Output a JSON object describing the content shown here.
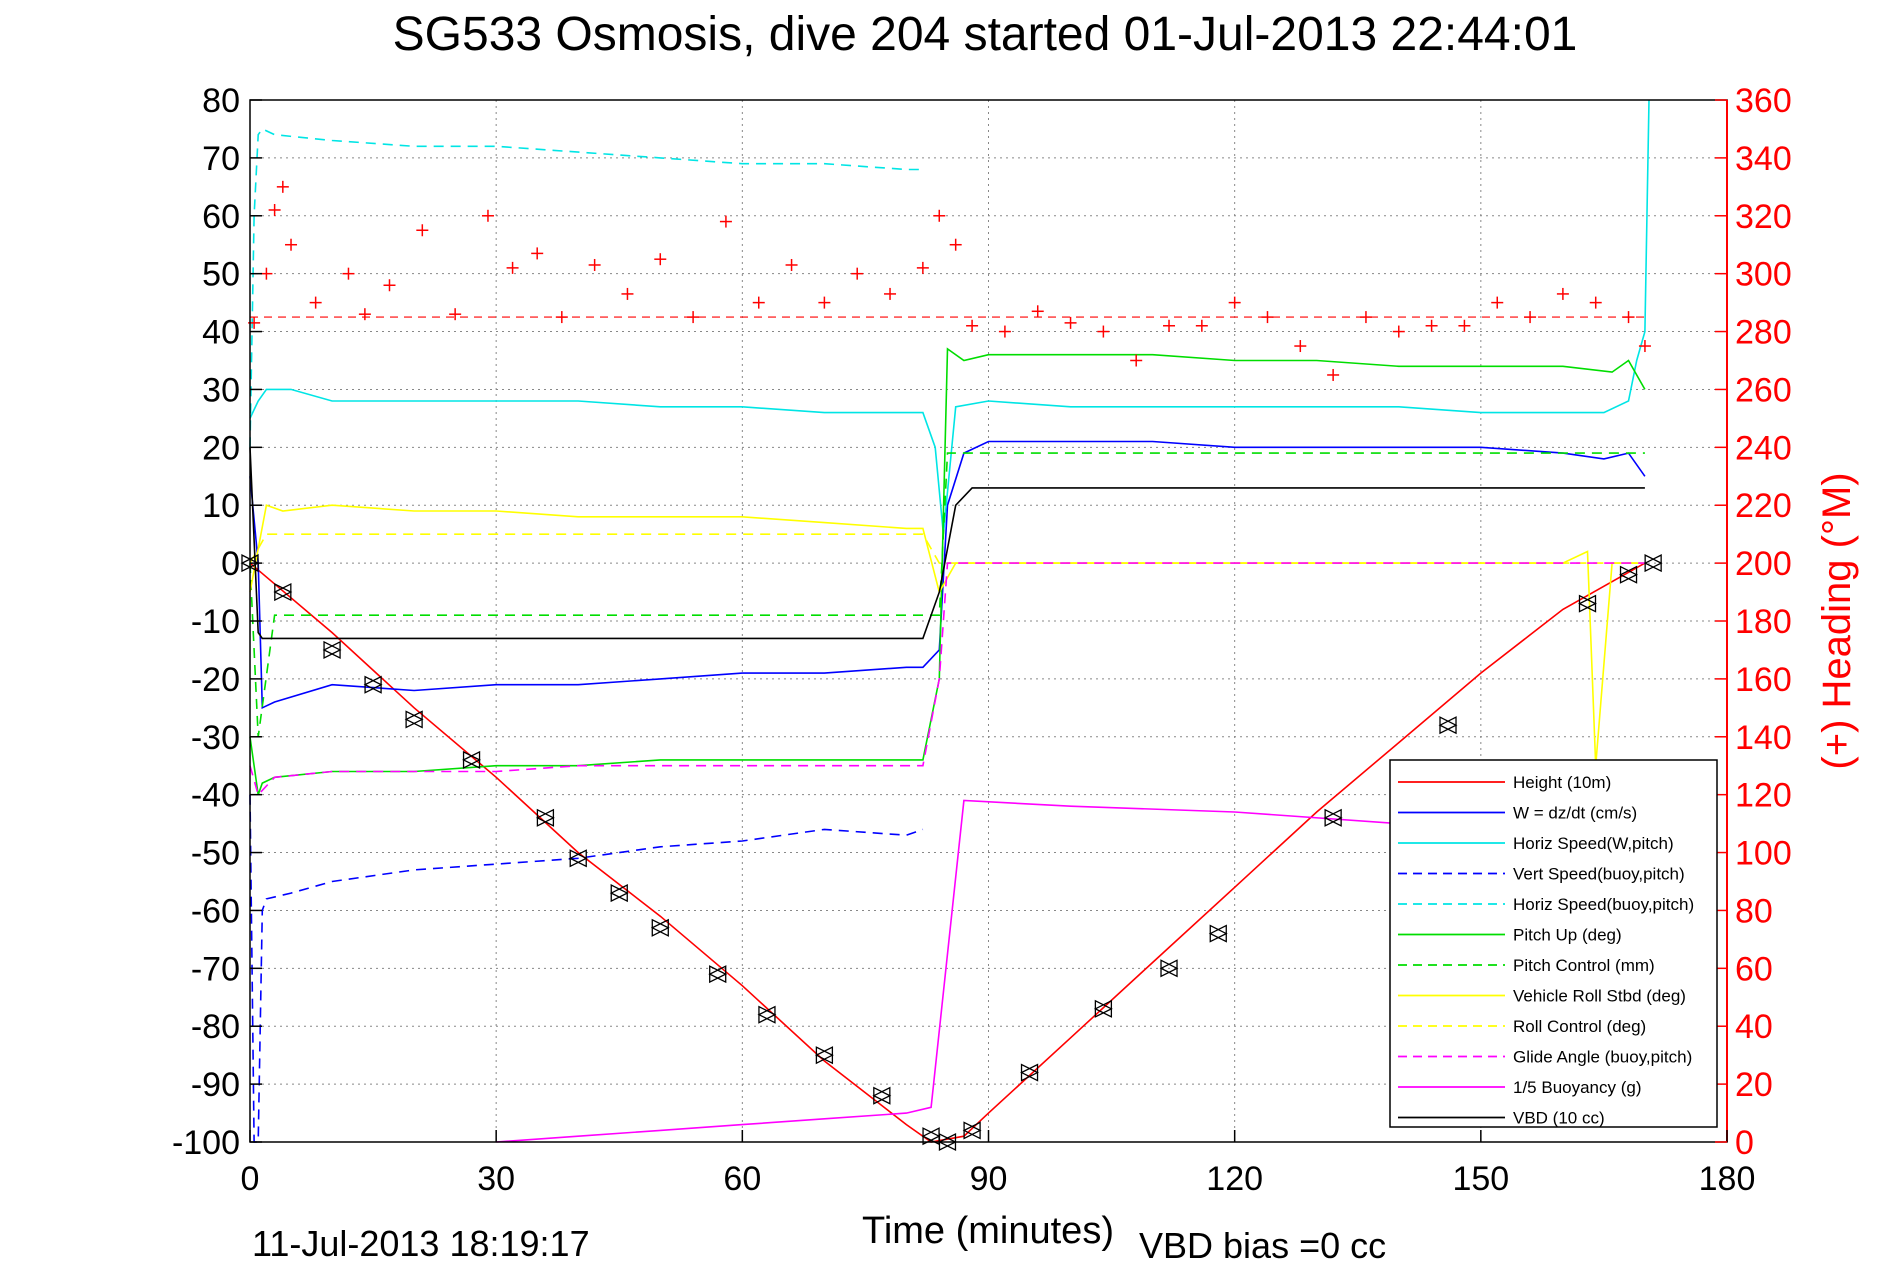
{
  "chart_data": {
    "type": "line",
    "title": "SG533 Osmosis, dive 204 started 01-Jul-2013 22:44:01",
    "xlabel": "Time (minutes)",
    "ylabel": "",
    "ylabel_right": "(+) Heading (°M)",
    "footer_left": "11-Jul-2013 18:19:17",
    "footer_right": "VBD bias =0 cc",
    "xlim": [
      0,
      180
    ],
    "ylim": [
      -100,
      80
    ],
    "ylim_right": [
      0,
      360
    ],
    "xticks": [
      "0",
      "30",
      "60",
      "90",
      "120",
      "150",
      "180"
    ],
    "yticks": [
      "80",
      "70",
      "60",
      "50",
      "40",
      "30",
      "20",
      "10",
      "0",
      "-10",
      "-20",
      "-30",
      "-40",
      "-50",
      "-60",
      "-70",
      "-80",
      "-90",
      "-100"
    ],
    "yticks_right": [
      "360",
      "340",
      "320",
      "300",
      "280",
      "260",
      "240",
      "220",
      "200",
      "180",
      "160",
      "140",
      "120",
      "100",
      "80",
      "60",
      "40",
      "20",
      "0"
    ],
    "grid": true,
    "legend_position": "lower-right",
    "colors": {
      "right_axis": "#ff0000",
      "heading": "#ff0000"
    },
    "series": [
      {
        "name": "Height (10m)",
        "color": "#ff0000",
        "dash": "solid",
        "x": [
          0,
          10,
          20,
          30,
          40,
          50,
          60,
          70,
          80,
          83,
          87,
          90,
          100,
          110,
          120,
          130,
          140,
          150,
          160,
          170
        ],
        "y": [
          0,
          -12,
          -25,
          -37,
          -50,
          -61,
          -73,
          -86,
          -97,
          -100,
          -99,
          -95,
          -82,
          -69,
          -56,
          -43,
          -31,
          -19,
          -8,
          0
        ]
      },
      {
        "name": "W = dz/dt (cm/s)",
        "color": "#0000ff",
        "dash": "solid",
        "x": [
          0,
          1,
          1.5,
          3,
          10,
          20,
          30,
          40,
          50,
          60,
          70,
          80,
          82,
          84,
          85,
          87,
          90,
          100,
          110,
          120,
          130,
          140,
          150,
          160,
          165,
          168,
          170
        ],
        "y": [
          15,
          0,
          -25,
          -24,
          -21,
          -22,
          -21,
          -21,
          -20,
          -19,
          -19,
          -18,
          -18,
          -15,
          10,
          19,
          21,
          21,
          21,
          20,
          20,
          20,
          20,
          19,
          18,
          19,
          15
        ]
      },
      {
        "name": "Horiz Speed(W,pitch)",
        "color": "#00e5e5",
        "dash": "solid",
        "x": [
          0,
          1,
          2,
          5,
          10,
          20,
          30,
          40,
          50,
          60,
          70,
          80,
          82,
          83.5,
          84.5,
          86,
          90,
          100,
          110,
          120,
          130,
          140,
          150,
          160,
          165,
          168,
          169,
          170,
          170.5
        ],
        "y": [
          25,
          28,
          30,
          30,
          28,
          28,
          28,
          28,
          27,
          27,
          26,
          26,
          26,
          20,
          5,
          27,
          28,
          27,
          27,
          27,
          27,
          27,
          26,
          26,
          26,
          28,
          35,
          40,
          80
        ]
      },
      {
        "name": "Vert Speed(buoy,pitch)",
        "color": "#0000ff",
        "dash": "dashed",
        "x": [
          0,
          0.5,
          1,
          1.5,
          2,
          5,
          10,
          20,
          30,
          40,
          50,
          60,
          70,
          80,
          82
        ],
        "y": [
          -40,
          -100,
          -100,
          -60,
          -58,
          -57,
          -55,
          -53,
          -52,
          -51,
          -49,
          -48,
          -46,
          -47,
          -46
        ]
      },
      {
        "name": "Horiz Speed(buoy,pitch)",
        "color": "#00e5e5",
        "dash": "dashed",
        "x": [
          0,
          0.5,
          1,
          1.5,
          3,
          10,
          20,
          30,
          40,
          50,
          60,
          70,
          80,
          82
        ],
        "y": [
          20,
          60,
          74,
          75,
          74,
          73,
          72,
          72,
          71,
          70,
          69,
          69,
          68,
          68
        ]
      },
      {
        "name": "Pitch Up (deg)",
        "color": "#00dd00",
        "dash": "solid",
        "x": [
          0,
          1,
          1.5,
          3,
          10,
          20,
          30,
          40,
          50,
          60,
          70,
          80,
          82,
          84,
          85,
          87,
          90,
          100,
          110,
          120,
          130,
          140,
          150,
          160,
          166,
          168,
          170
        ],
        "y": [
          -30,
          -40,
          -38,
          -37,
          -36,
          -36,
          -35,
          -35,
          -34,
          -34,
          -34,
          -34,
          -34,
          -20,
          37,
          35,
          36,
          36,
          36,
          35,
          35,
          34,
          34,
          34,
          33,
          35,
          30
        ]
      },
      {
        "name": "Pitch Control (mm)",
        "color": "#00dd00",
        "dash": "dashed",
        "x": [
          0,
          1,
          3,
          10,
          20,
          30,
          40,
          50,
          60,
          70,
          80,
          82,
          84,
          85,
          170
        ],
        "y": [
          0,
          -30,
          -9,
          -9,
          -9,
          -9,
          -9,
          -9,
          -9,
          -9,
          -9,
          -9,
          -9,
          19,
          19
        ]
      },
      {
        "name": "Vehicle Roll Stbd (deg)",
        "color": "#ffff00",
        "dash": "solid",
        "x": [
          0,
          2,
          4,
          10,
          20,
          30,
          40,
          50,
          60,
          70,
          80,
          82,
          84,
          86,
          88,
          90,
          100,
          110,
          120,
          130,
          140,
          150,
          160,
          163,
          164,
          166,
          170
        ],
        "y": [
          -5,
          10,
          9,
          10,
          9,
          9,
          8,
          8,
          8,
          7,
          6,
          6,
          -5,
          0,
          0,
          0,
          0,
          0,
          0,
          0,
          0,
          0,
          0,
          2,
          -35,
          0,
          0
        ]
      },
      {
        "name": "Roll Control (deg)",
        "color": "#ffff00",
        "dash": "dashed",
        "x": [
          0,
          2,
          3,
          10,
          20,
          30,
          40,
          50,
          60,
          70,
          80,
          82,
          84,
          85,
          170
        ],
        "y": [
          0,
          5,
          5,
          5,
          5,
          5,
          5,
          5,
          5,
          5,
          5,
          5,
          0,
          0,
          0
        ]
      },
      {
        "name": "Glide Angle (buoy,pitch)",
        "color": "#ff00ff",
        "dash": "dashed",
        "x": [
          0,
          1,
          3,
          10,
          20,
          30,
          40,
          50,
          60,
          70,
          80,
          82,
          84,
          85,
          170
        ],
        "y": [
          -35,
          -40,
          -37,
          -36,
          -36,
          -36,
          -35,
          -35,
          -35,
          -35,
          -35,
          -35,
          -20,
          0,
          0
        ]
      },
      {
        "name": "1/5 Buoyancy (g)",
        "color": "#ff00ff",
        "dash": "solid",
        "x": [
          30,
          40,
          50,
          60,
          70,
          80,
          83,
          87,
          100,
          120,
          140,
          160,
          170
        ],
        "y": [
          -100,
          -99,
          -98,
          -97,
          -96,
          -95,
          -94,
          -41,
          -42,
          -43,
          -45,
          -47,
          -48
        ]
      },
      {
        "name": "VBD (10 cc)",
        "color": "#000000",
        "dash": "solid",
        "x": [
          0,
          1,
          1.5,
          3,
          20,
          40,
          60,
          80,
          82,
          84,
          86,
          88,
          100,
          120,
          140,
          160,
          170
        ],
        "y": [
          20,
          -12,
          -13,
          -13,
          -13,
          -13,
          -13,
          -13,
          -13,
          -5,
          10,
          13,
          13,
          13,
          13,
          13,
          13
        ]
      }
    ],
    "reference_lines": [
      {
        "axis": "y_right",
        "value": 285,
        "color": "#ff0000",
        "dash": "dashed"
      }
    ],
    "heading_points": {
      "axis": "y_right",
      "marker": "+",
      "x": [
        0.5,
        2,
        3,
        4,
        5,
        8,
        12,
        14,
        17,
        21,
        25,
        29,
        32,
        35,
        38,
        42,
        46,
        50,
        54,
        58,
        62,
        66,
        70,
        74,
        78,
        82,
        84,
        86,
        88,
        92,
        96,
        100,
        104,
        108,
        112,
        116,
        120,
        124,
        128,
        132,
        136,
        140,
        144,
        148,
        152,
        156,
        160,
        164,
        168,
        170
      ],
      "y": [
        283,
        300,
        322,
        330,
        310,
        290,
        300,
        286,
        296,
        315,
        286,
        320,
        302,
        307,
        285,
        303,
        293,
        305,
        285,
        318,
        290,
        303,
        290,
        300,
        293,
        302,
        320,
        310,
        282,
        280,
        287,
        283,
        280,
        270,
        282,
        282,
        290,
        285,
        275,
        265,
        285,
        280,
        282,
        282,
        290,
        285,
        293,
        290,
        285,
        275
      ]
    },
    "markers": {
      "symbol": "triangles",
      "color": "#000000",
      "x": [
        0,
        4,
        10,
        15,
        20,
        27,
        36,
        40,
        45,
        50,
        57,
        63,
        70,
        77,
        83,
        85,
        88,
        95,
        104,
        112,
        118,
        132,
        146,
        163,
        168,
        171
      ],
      "y": [
        0,
        -5,
        -15,
        -21,
        -27,
        -34,
        -44,
        -51,
        -57,
        -63,
        -71,
        -78,
        -85,
        -92,
        -99,
        -100,
        -98,
        -88,
        -77,
        -70,
        -64,
        -44,
        -28,
        -7,
        -2,
        0
      ]
    }
  }
}
